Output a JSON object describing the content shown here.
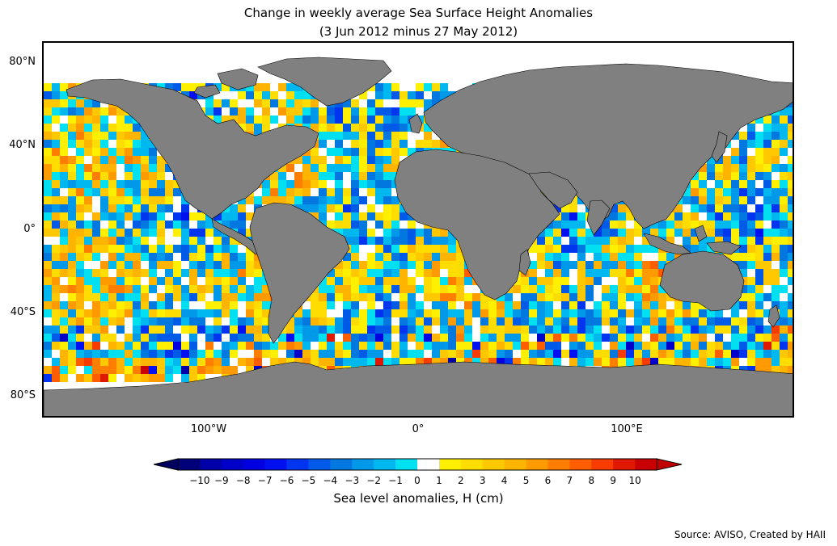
{
  "title": {
    "line1": "Change in weekly average Sea Surface Height Anomalies",
    "line2": "(3 Jun 2012 minus 27 May 2012)"
  },
  "map": {
    "land_color": "#808080",
    "ocean_missing_color": "#ffffff",
    "lat_labels": [
      "80°N",
      "40°N",
      "0°",
      "40°S",
      "80°S"
    ],
    "lon_labels": [
      "100°W",
      "0°",
      "100°E"
    ]
  },
  "colorbar": {
    "label": "Sea level anomalies, H (cm)",
    "ticks": [
      "−10",
      "−9",
      "−8",
      "−7",
      "−6",
      "−5",
      "−4",
      "−3",
      "−2",
      "−1",
      "0",
      "1",
      "2",
      "3",
      "4",
      "5",
      "6",
      "7",
      "8",
      "9",
      "10"
    ],
    "colors": [
      "#00007a",
      "#0000a8",
      "#0000c8",
      "#0000e0",
      "#0010f0",
      "#0035f0",
      "#005ae8",
      "#0078e0",
      "#0098e8",
      "#00b8f0",
      "#00e0f0",
      "#ffffff",
      "#fff000",
      "#ffdd00",
      "#ffc800",
      "#ffb400",
      "#ff9a00",
      "#ff7e00",
      "#ff5e00",
      "#f83c00",
      "#e01800",
      "#c80000"
    ],
    "under_color": "#000060",
    "over_color": "#c00000"
  },
  "source": "Source: AVISO, Created by HAII"
}
